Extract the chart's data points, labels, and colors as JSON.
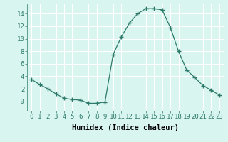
{
  "x": [
    0,
    1,
    2,
    3,
    4,
    5,
    6,
    7,
    8,
    9,
    10,
    11,
    12,
    13,
    14,
    15,
    16,
    17,
    18,
    19,
    20,
    21,
    22,
    23
  ],
  "y": [
    3.5,
    2.7,
    2.0,
    1.2,
    0.5,
    0.3,
    0.2,
    -0.3,
    -0.3,
    -0.1,
    7.5,
    10.3,
    12.5,
    14.0,
    14.8,
    14.8,
    14.6,
    11.8,
    8.0,
    5.0,
    3.8,
    2.5,
    1.8,
    1.0
  ],
  "line_color": "#2d7a6a",
  "marker": "+",
  "marker_size": 4,
  "bg_color": "#d8f5f0",
  "grid_color": "#b0ddd5",
  "xlabel": "Humidex (Indice chaleur)",
  "xlim": [
    -0.5,
    23.5
  ],
  "ylim": [
    -1.5,
    15.5
  ],
  "yticks": [
    0,
    2,
    4,
    6,
    8,
    10,
    12,
    14
  ],
  "ytick_labels": [
    "-0",
    "2",
    "4",
    "6",
    "8",
    "10",
    "12",
    "14"
  ],
  "xticks": [
    0,
    1,
    2,
    3,
    4,
    5,
    6,
    7,
    8,
    9,
    10,
    11,
    12,
    13,
    14,
    15,
    16,
    17,
    18,
    19,
    20,
    21,
    22,
    23
  ],
  "xtick_labels": [
    "0",
    "1",
    "2",
    "3",
    "4",
    "5",
    "6",
    "7",
    "8",
    "9",
    "10",
    "11",
    "12",
    "13",
    "14",
    "15",
    "16",
    "17",
    "18",
    "19",
    "20",
    "21",
    "22",
    "23"
  ],
  "font_size": 6.5,
  "label_font_size": 7.5
}
